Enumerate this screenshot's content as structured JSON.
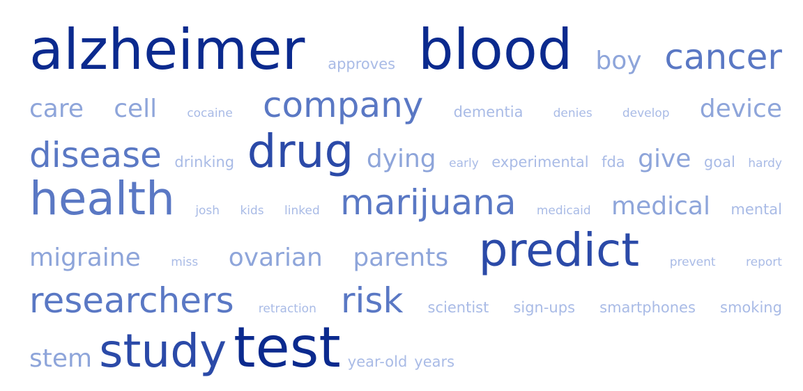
{
  "colors": {
    "darkest": "#0b2a8e",
    "dark": "#2b4aa8",
    "mid": "#5a78c4",
    "light": "#8ea5da",
    "lightest": "#a9bbe6"
  },
  "rows": [
    {
      "words": [
        {
          "text": "alzheimer",
          "weight": 5,
          "tone": "darkest"
        },
        {
          "text": "approves",
          "weight": 1,
          "tone": "lightest"
        },
        {
          "text": "blood",
          "weight": 5,
          "tone": "darkest"
        },
        {
          "text": "boy",
          "weight": 2,
          "tone": "light"
        },
        {
          "text": "cancer",
          "weight": 3,
          "tone": "mid"
        }
      ]
    },
    {
      "words": [
        {
          "text": "care",
          "weight": 2,
          "tone": "light"
        },
        {
          "text": "cell",
          "weight": 2,
          "tone": "light"
        },
        {
          "text": "cocaine",
          "weight": 0,
          "tone": "lightest"
        },
        {
          "text": "company",
          "weight": 3,
          "tone": "mid"
        },
        {
          "text": "dementia",
          "weight": 1,
          "tone": "lightest"
        },
        {
          "text": "denies",
          "weight": 0,
          "tone": "lightest"
        },
        {
          "text": "develop",
          "weight": 0,
          "tone": "lightest"
        },
        {
          "text": "device",
          "weight": 2,
          "tone": "light"
        }
      ]
    },
    {
      "words": [
        {
          "text": "disease",
          "weight": 3,
          "tone": "mid"
        },
        {
          "text": "drinking",
          "weight": 1,
          "tone": "lightest"
        },
        {
          "text": "drug",
          "weight": 4,
          "tone": "dark"
        },
        {
          "text": "dying",
          "weight": 2,
          "tone": "light"
        },
        {
          "text": "early",
          "weight": 0,
          "tone": "lightest"
        },
        {
          "text": "experimental",
          "weight": 1,
          "tone": "lightest"
        },
        {
          "text": "fda",
          "weight": 1,
          "tone": "lightest"
        },
        {
          "text": "give",
          "weight": 2,
          "tone": "light"
        },
        {
          "text": "goal",
          "weight": 1,
          "tone": "lightest"
        },
        {
          "text": "hardy",
          "weight": 0,
          "tone": "lightest"
        }
      ]
    },
    {
      "words": [
        {
          "text": "health",
          "weight": 4,
          "tone": "mid"
        },
        {
          "text": "josh",
          "weight": 0,
          "tone": "lightest"
        },
        {
          "text": "kids",
          "weight": 0,
          "tone": "lightest"
        },
        {
          "text": "linked",
          "weight": 0,
          "tone": "lightest"
        },
        {
          "text": "marijuana",
          "weight": 3,
          "tone": "mid"
        },
        {
          "text": "medicaid",
          "weight": 0,
          "tone": "lightest"
        },
        {
          "text": "medical",
          "weight": 2,
          "tone": "light"
        },
        {
          "text": "mental",
          "weight": 1,
          "tone": "lightest"
        }
      ]
    },
    {
      "words": [
        {
          "text": "migraine",
          "weight": 2,
          "tone": "light"
        },
        {
          "text": "miss",
          "weight": 0,
          "tone": "lightest"
        },
        {
          "text": "ovarian",
          "weight": 2,
          "tone": "light"
        },
        {
          "text": "parents",
          "weight": 2,
          "tone": "light"
        },
        {
          "text": "predict",
          "weight": 4,
          "tone": "dark"
        },
        {
          "text": "prevent",
          "weight": 0,
          "tone": "lightest"
        },
        {
          "text": "report",
          "weight": 0,
          "tone": "lightest"
        }
      ]
    },
    {
      "words": [
        {
          "text": "researchers",
          "weight": 3,
          "tone": "mid"
        },
        {
          "text": "retraction",
          "weight": 0,
          "tone": "lightest"
        },
        {
          "text": "risk",
          "weight": 3,
          "tone": "mid"
        },
        {
          "text": "scientist",
          "weight": 1,
          "tone": "lightest"
        },
        {
          "text": "sign-ups",
          "weight": 1,
          "tone": "lightest"
        },
        {
          "text": "smartphones",
          "weight": 1,
          "tone": "lightest"
        },
        {
          "text": "smoking",
          "weight": 1,
          "tone": "lightest"
        }
      ]
    },
    {
      "words": [
        {
          "text": "stem",
          "weight": 2,
          "tone": "light"
        },
        {
          "text": "study",
          "weight": 4,
          "tone": "dark"
        },
        {
          "text": "test",
          "weight": 5,
          "tone": "darkest"
        },
        {
          "text": "year-old",
          "weight": 1,
          "tone": "lightest"
        },
        {
          "text": "years",
          "weight": 1,
          "tone": "lightest"
        }
      ]
    }
  ]
}
